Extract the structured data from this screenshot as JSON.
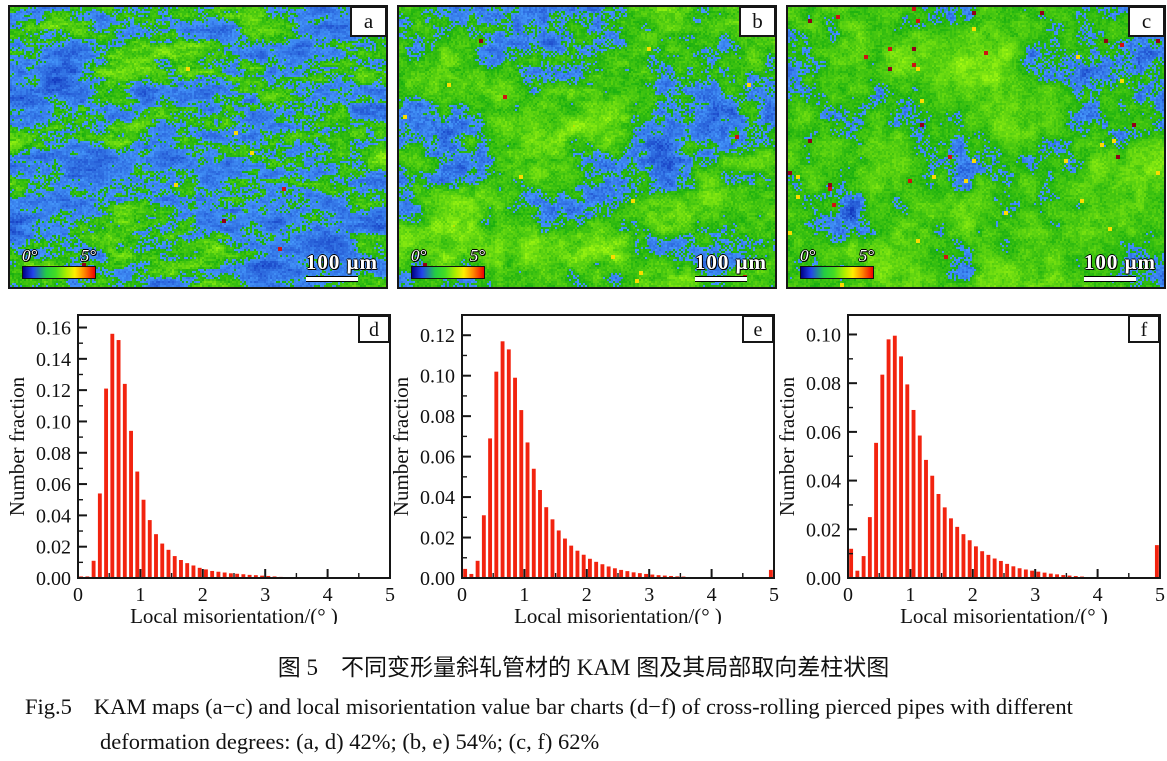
{
  "figure": {
    "maps": {
      "colorbar_min": "0°",
      "colorbar_max": "5°",
      "scale_bar": "100 μm",
      "colorbar_gradient": [
        "#000088",
        "#2244ee",
        "#22cc44",
        "#aaee00",
        "#ffee00",
        "#ff8800",
        "#ee0000"
      ],
      "panels": [
        {
          "label": "a",
          "seed": 11,
          "blue_threshold": 0.5,
          "anisotropy": 2.4,
          "red_specks": 0.0004,
          "yellow_specks": 0.0008
        },
        {
          "label": "b",
          "seed": 22,
          "blue_threshold": 0.41,
          "anisotropy": 1.3,
          "red_specks": 0.002,
          "yellow_specks": 0.0018
        },
        {
          "label": "c",
          "seed": 33,
          "blue_threshold": 0.36,
          "anisotropy": 1.0,
          "red_specks": 0.006,
          "yellow_specks": 0.0025
        }
      ]
    },
    "caption": {
      "zh": "图 5　不同变形量斜轧管材的 KAM 图及其局部取向差柱状图",
      "en_prefix": "Fig.5",
      "en_line1": "KAM maps (a−c) and local misorientation value bar charts (d−f) of cross-rolling pierced pipes with different",
      "en_line2": "deformation degrees: (a, d) 42%; (b, e) 54%; (c, f) 62%"
    }
  },
  "chart_data": [
    {
      "type": "bar",
      "panel": "d",
      "xlabel": "Local misorientation/(° )",
      "ylabel": "Number fraction",
      "xlim": [
        0,
        5
      ],
      "ylim": [
        0,
        0.168
      ],
      "xtick_major": 1,
      "xtick_minor": 0.5,
      "ytick_major": 0.02,
      "ytick_minor": 0.01,
      "ytick_label_max": 0.16,
      "bar_color": "#f2230f",
      "x_start": 0.05,
      "x_step": 0.1,
      "grid": false,
      "legend": "none",
      "values": [
        0.001,
        0.001,
        0.011,
        0.054,
        0.121,
        0.156,
        0.152,
        0.124,
        0.094,
        0.068,
        0.05,
        0.037,
        0.028,
        0.022,
        0.018,
        0.014,
        0.0115,
        0.0095,
        0.008,
        0.0065,
        0.0055,
        0.0045,
        0.004,
        0.0035,
        0.003,
        0.0027,
        0.0024,
        0.002,
        0.0018,
        0.0015,
        0.0013,
        0.001,
        0.0007,
        0.0005,
        0.0004,
        0.0003,
        0.0002,
        0.0002,
        0.0001,
        0.0001,
        0.0001,
        0.0001,
        0.0001,
        0.0001,
        0.0001,
        0.0001,
        0.0001,
        0.0001,
        0.0001,
        0.0001
      ]
    },
    {
      "type": "bar",
      "panel": "e",
      "xlabel": "Local misorientation/(° )",
      "ylabel": "Number fraction",
      "xlim": [
        0,
        5
      ],
      "ylim": [
        0,
        0.13
      ],
      "xtick_major": 1,
      "xtick_minor": 0.5,
      "ytick_major": 0.02,
      "ytick_minor": 0.01,
      "ytick_label_max": 0.12,
      "bar_color": "#f2230f",
      "x_start": 0.05,
      "x_step": 0.1,
      "grid": false,
      "legend": "none",
      "values": [
        0.0045,
        0.002,
        0.0085,
        0.031,
        0.069,
        0.102,
        0.117,
        0.113,
        0.099,
        0.083,
        0.067,
        0.054,
        0.0435,
        0.035,
        0.029,
        0.0235,
        0.0195,
        0.016,
        0.0135,
        0.0115,
        0.0095,
        0.008,
        0.0068,
        0.0057,
        0.0048,
        0.004,
        0.0034,
        0.0028,
        0.0024,
        0.002,
        0.0017,
        0.0014,
        0.0012,
        0.001,
        0.0008,
        0.0007,
        0.0005,
        0.0004,
        0.0003,
        0.0002,
        0.0002,
        0.0001,
        0.0001,
        0.0001,
        0.0001,
        0.0001,
        0.0001,
        0.0001,
        0.0001,
        0.004
      ]
    },
    {
      "type": "bar",
      "panel": "f",
      "xlabel": "Local misorientation/(° )",
      "ylabel": "Number fraction",
      "xlim": [
        0,
        5
      ],
      "ylim": [
        0,
        0.108
      ],
      "xtick_major": 1,
      "xtick_minor": 0.5,
      "ytick_major": 0.02,
      "ytick_minor": 0.01,
      "ytick_label_max": 0.1,
      "bar_color": "#f2230f",
      "x_start": 0.05,
      "x_step": 0.1,
      "grid": false,
      "legend": "none",
      "values": [
        0.012,
        0.003,
        0.009,
        0.025,
        0.0555,
        0.0835,
        0.098,
        0.0995,
        0.091,
        0.0795,
        0.069,
        0.0585,
        0.0485,
        0.042,
        0.0345,
        0.029,
        0.0245,
        0.021,
        0.018,
        0.0155,
        0.013,
        0.011,
        0.0095,
        0.008,
        0.007,
        0.0058,
        0.0048,
        0.004,
        0.0035,
        0.003,
        0.0026,
        0.0022,
        0.0018,
        0.0015,
        0.0012,
        0.001,
        0.0008,
        0.0006,
        0.0004,
        0.0003,
        0.0002,
        0.0002,
        0.0001,
        0.0001,
        0.0001,
        0.0001,
        0.0001,
        0.0001,
        0.0001,
        0.0135
      ]
    }
  ]
}
